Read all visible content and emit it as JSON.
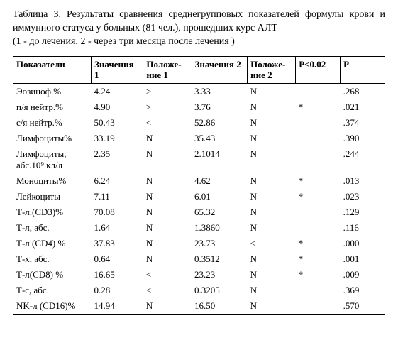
{
  "caption": {
    "line1": "Таблица 3. Результаты сравнения среднегрупповых показателей формулы крови и иммунного статуса у больных (81 чел.), прошедших курс АЛТ",
    "line2": "(1 - до лечения, 2 - через три месяца после лечения )"
  },
  "headers": [
    "Показатели",
    "Значения 1",
    "Положе-\nние 1",
    "Значения 2",
    "Положе-\nние 2",
    "P<0.02",
    "P"
  ],
  "rows": [
    {
      "p": "Эозиноф.%",
      "v1": "4.24",
      "s1": ">",
      "v2": "3.33",
      "s2": "N",
      "sig": "",
      "pval": ".268"
    },
    {
      "p": "п/я нейтр.%",
      "v1": "4.90",
      "s1": ">",
      "v2": "3.76",
      "s2": "N",
      "sig": "*",
      "pval": ".021"
    },
    {
      "p": "с/я нейтр.%",
      "v1": "50.43",
      "s1": "<",
      "v2": "52.86",
      "s2": "N",
      "sig": "",
      "pval": ".374"
    },
    {
      "p": "Лимфоциты%",
      "v1": "33.19",
      "s1": "N",
      "v2": "35.43",
      "s2": "N",
      "sig": "",
      "pval": ".390"
    },
    {
      "p": "Лимфоциты, абс.10⁹ кл/л",
      "v1": "2.35",
      "s1": "N",
      "v2": "2.1014",
      "s2": "N",
      "sig": "",
      "pval": ".244"
    },
    {
      "p": "Моноциты%",
      "v1": "6.24",
      "s1": "N",
      "v2": "4.62",
      "s2": "N",
      "sig": "*",
      "pval": ".013"
    },
    {
      "p": "Лейкоциты",
      "v1": "7.11",
      "s1": "N",
      "v2": "6.01",
      "s2": "N",
      "sig": "*",
      "pval": ".023"
    },
    {
      "p": "Т-л.(CD3)%",
      "v1": "70.08",
      "s1": "N",
      "v2": "65.32",
      "s2": "N",
      "sig": "",
      "pval": ".129"
    },
    {
      "p": "Т-л, абс.",
      "v1": "1.64",
      "s1": "N",
      "v2": "1.3860",
      "s2": "N",
      "sig": "",
      "pval": ".116"
    },
    {
      "p": "Т-л (CD4) %",
      "v1": "37.83",
      "s1": "N",
      "v2": "23.73",
      "s2": "<",
      "sig": "*",
      "pval": ".000"
    },
    {
      "p": "Т-х, абс.",
      "v1": "0.64",
      "s1": "N",
      "v2": "0.3512",
      "s2": "N",
      "sig": "*",
      "pval": ".001"
    },
    {
      "p": "Т-л(CD8) %",
      "v1": "16.65",
      "s1": "<",
      "v2": "23.23",
      "s2": "N",
      "sig": "*",
      "pval": ".009"
    },
    {
      "p": "Т-с, абс.",
      "v1": "0.28",
      "s1": "<",
      "v2": "0.3205",
      "s2": "N",
      "sig": "",
      "pval": ".369"
    },
    {
      "p": "NK-л (CD16)%",
      "v1": "14.94",
      "s1": "N",
      "v2": "16.50",
      "s2": "N",
      "sig": "",
      "pval": ".570"
    }
  ]
}
